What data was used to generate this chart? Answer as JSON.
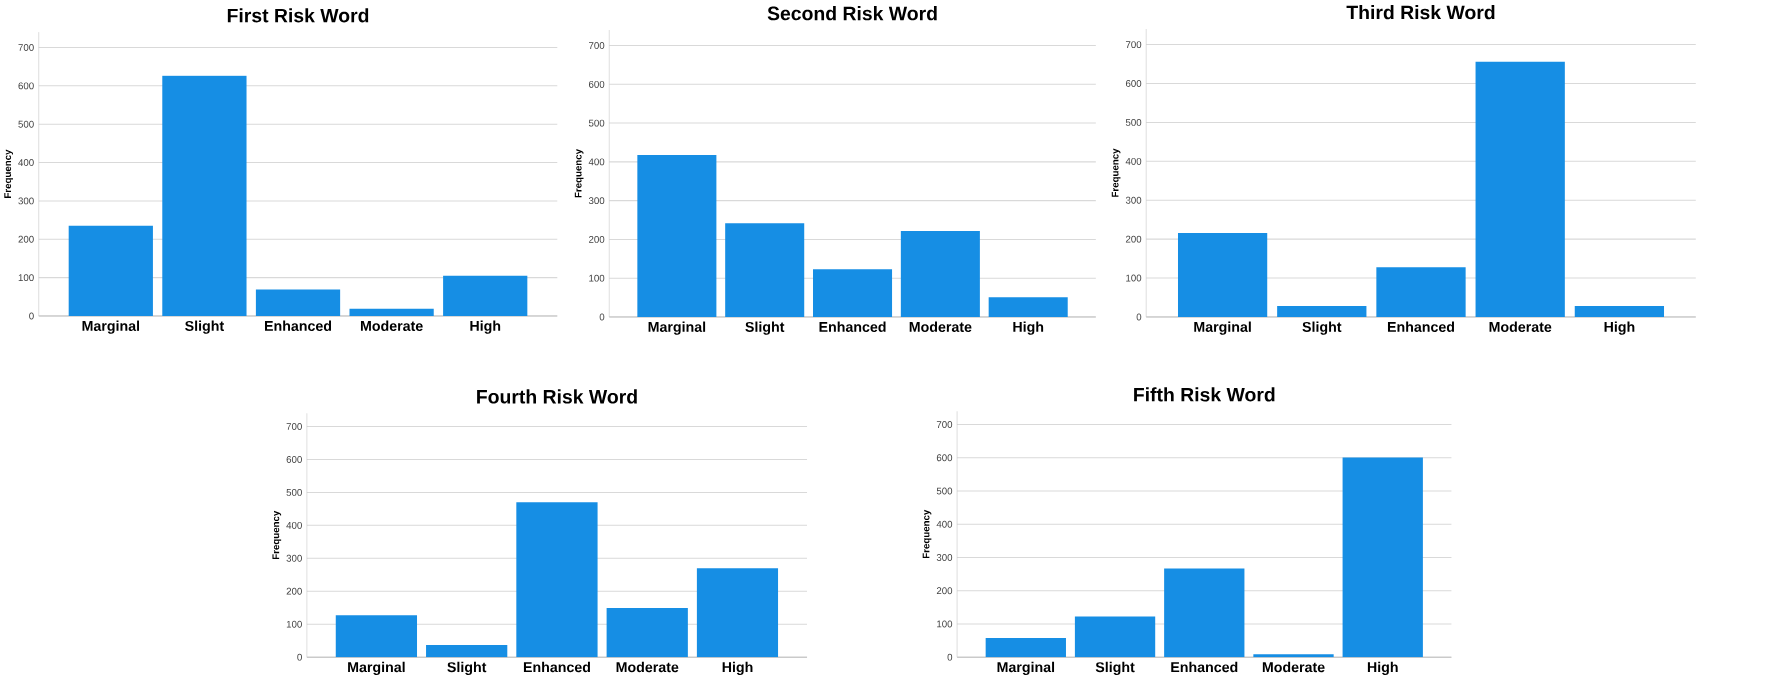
{
  "chart_data": [
    {
      "type": "bar",
      "title": "First Risk Word",
      "ylabel": "Frequency",
      "categories": [
        "Marginal",
        "Slight",
        "Enhanced",
        "Moderate",
        "High"
      ],
      "values": [
        235,
        626,
        69,
        19,
        105
      ],
      "color": "#168ee4",
      "ylim": [
        0,
        740
      ],
      "yticks": [
        0,
        100,
        200,
        300,
        400,
        500,
        600,
        700
      ],
      "grid": "y"
    },
    {
      "type": "bar",
      "title": "Second Risk Word",
      "ylabel": "Frequency",
      "categories": [
        "Marginal",
        "Slight",
        "Enhanced",
        "Moderate",
        "High"
      ],
      "values": [
        418,
        242,
        123,
        222,
        51
      ],
      "color": "#168ee4",
      "ylim": [
        0,
        740
      ],
      "yticks": [
        0,
        100,
        200,
        300,
        400,
        500,
        600,
        700
      ],
      "grid": "y"
    },
    {
      "type": "bar",
      "title": "Third Risk Word",
      "ylabel": "Frequency",
      "categories": [
        "Marginal",
        "Slight",
        "Enhanced",
        "Moderate",
        "High"
      ],
      "values": [
        216,
        28,
        128,
        656,
        28
      ],
      "color": "#168ee4",
      "ylim": [
        0,
        740
      ],
      "yticks": [
        0,
        100,
        200,
        300,
        400,
        500,
        600,
        700
      ],
      "grid": "y"
    },
    {
      "type": "bar",
      "title": "Fourth Risk Word",
      "ylabel": "Frequency",
      "categories": [
        "Marginal",
        "Slight",
        "Enhanced",
        "Moderate",
        "High"
      ],
      "values": [
        127,
        37,
        470,
        149,
        270
      ],
      "color": "#168ee4",
      "ylim": [
        0,
        740
      ],
      "yticks": [
        0,
        100,
        200,
        300,
        400,
        500,
        600,
        700
      ],
      "grid": "y"
    },
    {
      "type": "bar",
      "title": "Fifth Risk Word",
      "ylabel": "Frequency",
      "categories": [
        "Marginal",
        "Slight",
        "Enhanced",
        "Moderate",
        "High"
      ],
      "values": [
        58,
        122,
        267,
        9,
        601
      ],
      "color": "#168ee4",
      "ylim": [
        0,
        740
      ],
      "yticks": [
        0,
        100,
        200,
        300,
        400,
        500,
        600,
        700
      ],
      "grid": "y"
    }
  ]
}
